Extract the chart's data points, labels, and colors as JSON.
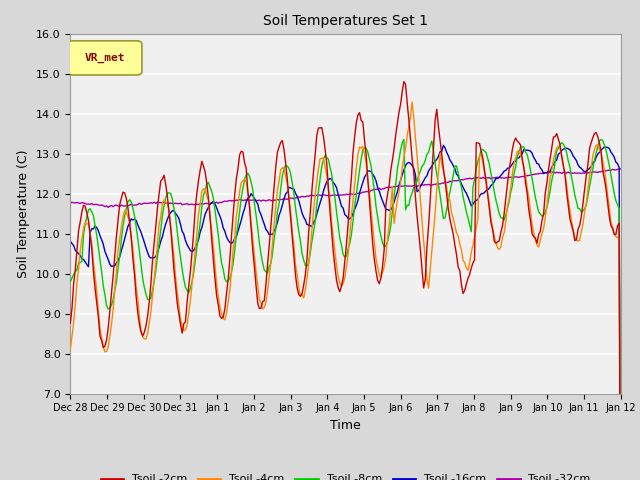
{
  "title": "Soil Temperatures Set 1",
  "xlabel": "Time",
  "ylabel": "Soil Temperature (C)",
  "ylim": [
    7.0,
    16.0
  ],
  "yticks": [
    7.0,
    8.0,
    9.0,
    10.0,
    11.0,
    12.0,
    13.0,
    14.0,
    15.0,
    16.0
  ],
  "legend_label": "VR_met",
  "series_labels": [
    "Tsoil -2cm",
    "Tsoil -4cm",
    "Tsoil -8cm",
    "Tsoil -16cm",
    "Tsoil -32cm"
  ],
  "series_colors": [
    "#cc0000",
    "#ff8800",
    "#00cc00",
    "#0000cc",
    "#aa00aa"
  ],
  "fig_bg_color": "#d8d8d8",
  "plot_bg_color": "#f0f0f0",
  "x_tick_labels": [
    "Dec 28",
    "Dec 29",
    "Dec 30",
    "Dec 31",
    "Jan 1",
    "Jan 2",
    "Jan 3",
    "Jan 4",
    "Jan 5",
    "Jan 6",
    "Jan 7",
    "Jan 8",
    "Jan 9",
    "Jan 10",
    "Jan 11",
    "Jan 12"
  ],
  "num_points": 336,
  "days": 14
}
